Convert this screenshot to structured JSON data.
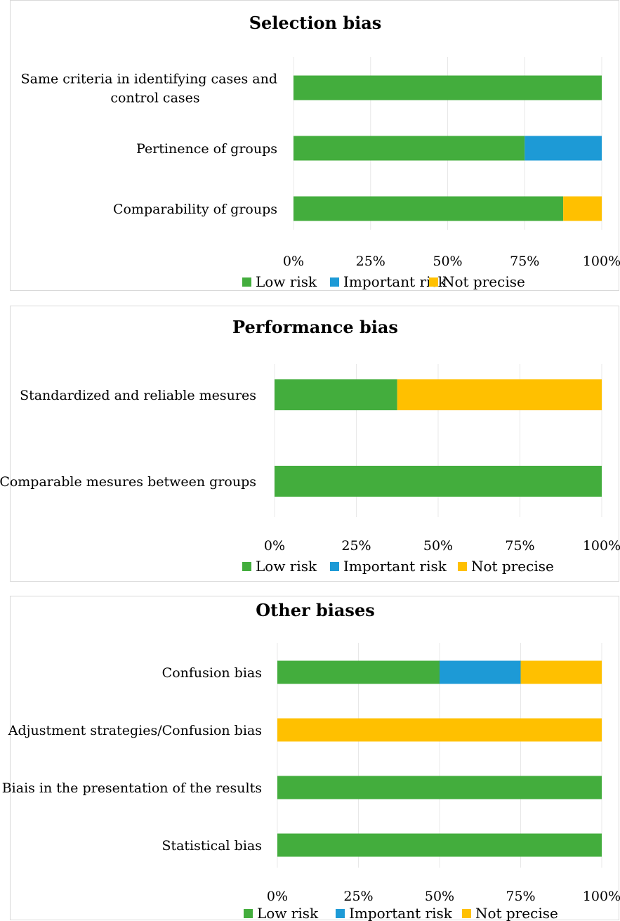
{
  "colors": {
    "low_risk": "#43ad3d",
    "important_risk": "#1d9ad6",
    "not_precise": "#ffc000",
    "gridline": "#e8e8e8",
    "panel_border": "#d9d9d9"
  },
  "chart_data": [
    {
      "type": "bar",
      "orientation": "horizontal",
      "stacked": true,
      "title": "Selection bias",
      "categories": [
        [
          "Same criteria in identifying cases and",
          "control cases"
        ],
        [
          "Pertinence of groups"
        ],
        [
          "Comparability of groups"
        ]
      ],
      "series": [
        {
          "name": "Low risk",
          "values": [
            100,
            75,
            87.5
          ]
        },
        {
          "name": "Important risk",
          "values": [
            0,
            25,
            0
          ]
        },
        {
          "name": "Not precise",
          "values": [
            0,
            0,
            12.5
          ]
        }
      ],
      "xlim": [
        0,
        100
      ],
      "x_ticks": [
        "0%",
        "25%",
        "50%",
        "75%",
        "100%"
      ],
      "grid": true,
      "legend_position": "bottom"
    },
    {
      "type": "bar",
      "orientation": "horizontal",
      "stacked": true,
      "title": "Performance bias",
      "categories": [
        [
          "Standardized and reliable mesures"
        ],
        [
          "Comparable mesures between groups"
        ]
      ],
      "series": [
        {
          "name": "Low risk",
          "values": [
            37.5,
            100
          ]
        },
        {
          "name": "Important risk",
          "values": [
            0,
            0
          ]
        },
        {
          "name": "Not precise",
          "values": [
            62.5,
            0
          ]
        }
      ],
      "xlim": [
        0,
        100
      ],
      "x_ticks": [
        "0%",
        "25%",
        "50%",
        "75%",
        "100%"
      ],
      "grid": true,
      "legend_position": "bottom"
    },
    {
      "type": "bar",
      "orientation": "horizontal",
      "stacked": true,
      "title": "Other biases",
      "categories": [
        [
          "Confusion bias"
        ],
        [
          "Adjustment strategies/Confusion bias"
        ],
        [
          "Biais in the presentation of the results"
        ],
        [
          "Statistical bias"
        ]
      ],
      "series": [
        {
          "name": "Low risk",
          "values": [
            50,
            0,
            100,
            100
          ]
        },
        {
          "name": "Important risk",
          "values": [
            25,
            0,
            0,
            0
          ]
        },
        {
          "name": "Not precise",
          "values": [
            25,
            100,
            0,
            0
          ]
        }
      ],
      "xlim": [
        0,
        100
      ],
      "x_ticks": [
        "0%",
        "25%",
        "50%",
        "75%",
        "100%"
      ],
      "grid": true,
      "legend_position": "bottom"
    }
  ]
}
